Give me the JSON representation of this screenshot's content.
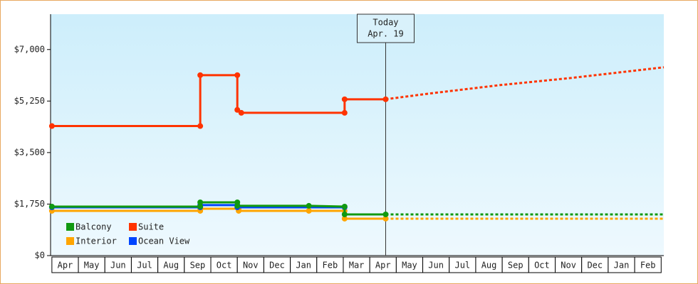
{
  "chart_data": {
    "type": "step-line",
    "categories": [
      "Apr",
      "May",
      "Jun",
      "Jul",
      "Aug",
      "Sep",
      "Oct",
      "Nov",
      "Dec",
      "Jan",
      "Feb",
      "Mar",
      "Apr",
      "May",
      "Jun",
      "Jul",
      "Aug",
      "Sep",
      "Oct",
      "Nov",
      "Dec",
      "Jan",
      "Feb"
    ],
    "xlim": [
      -0.05,
      23.1
    ],
    "ylim": [
      0,
      8200
    ],
    "yticks": [
      {
        "value": 0,
        "label": "$0"
      },
      {
        "value": 1750,
        "label": "$1,750"
      },
      {
        "value": 3500,
        "label": "$3,500"
      },
      {
        "value": 5250,
        "label": "$5,250"
      },
      {
        "value": 7000,
        "label": "$7,000"
      }
    ],
    "today": {
      "x": 12.6,
      "label": [
        "Today",
        "Apr. 19"
      ]
    },
    "series": [
      {
        "name": "Balcony",
        "color": "#119911",
        "x": [
          0,
          5.6,
          5.6,
          7.0,
          7.0,
          9.7,
          11.05,
          11.05,
          12.6
        ],
        "values": [
          1665,
          1665,
          1810,
          1810,
          1690,
          1690,
          1665,
          1400,
          1400
        ],
        "forecast": {
          "x": [
            12.6,
            23.1
          ],
          "values": [
            1400,
            1400
          ]
        }
      },
      {
        "name": "Suite",
        "color": "#ff3300",
        "x": [
          0,
          5.6,
          5.6,
          7.0,
          7.0,
          7.15,
          11.05,
          11.05,
          12.6
        ],
        "values": [
          4400,
          4400,
          6130,
          6130,
          4950,
          4850,
          4850,
          5310,
          5310
        ],
        "forecast": {
          "x": [
            12.6,
            14.2,
            16.9,
            19.6,
            23.1
          ],
          "values": [
            5310,
            5500,
            5790,
            6034,
            6397
          ]
        }
      },
      {
        "name": "Interior",
        "color": "#ffa500",
        "x": [
          0,
          5.6,
          5.6,
          7.05,
          7.05,
          9.7,
          11.05,
          11.05,
          12.6
        ],
        "values": [
          1520,
          1520,
          1593,
          1593,
          1520,
          1520,
          1520,
          1255,
          1255
        ],
        "forecast": {
          "x": [
            12.6,
            23.1
          ],
          "values": [
            1255,
            1255
          ]
        }
      },
      {
        "name": "Ocean View",
        "color": "#0044ff",
        "x": [
          0,
          5.6,
          5.6,
          7.0,
          7.0,
          11.05
        ],
        "values": [
          1640,
          1640,
          1714,
          1714,
          1640,
          1640
        ]
      }
    ]
  }
}
